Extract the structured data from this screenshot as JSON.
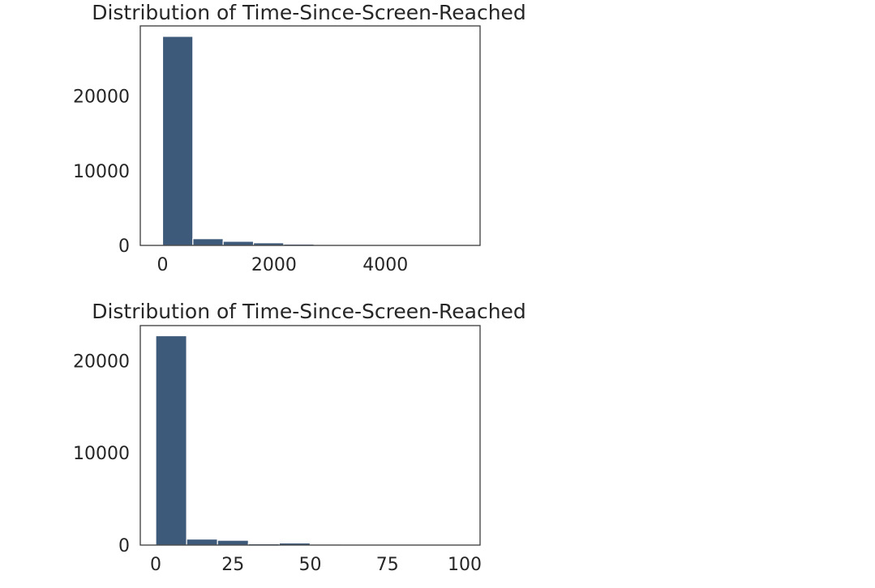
{
  "chart_data": [
    {
      "type": "bar",
      "title": "Distribution of Time-Since-Screen-Reached",
      "xlabel": "",
      "ylabel": "",
      "bin_edges": [
        0,
        544,
        1088,
        1632,
        2176,
        2720,
        3264,
        3808,
        4352,
        4896,
        5440
      ],
      "values": [
        28000,
        900,
        550,
        350,
        180,
        70,
        40,
        20,
        10,
        5
      ],
      "xlim": [
        -400,
        5700
      ],
      "ylim": [
        0,
        29400
      ],
      "xticks": [
        0,
        2000,
        4000
      ],
      "xtick_labels": [
        "0",
        "2000",
        "4000"
      ],
      "yticks": [
        0,
        10000,
        20000
      ],
      "ytick_labels": [
        "0",
        "10000",
        "20000"
      ],
      "grid": false,
      "color": "#3e5a7a"
    },
    {
      "type": "bar",
      "title": "Distribution of Time-Since-Screen-Reached",
      "xlabel": "",
      "ylabel": "",
      "bin_edges": [
        0,
        10,
        20,
        30,
        40,
        50,
        60,
        70,
        80,
        90,
        100
      ],
      "values": [
        22700,
        650,
        520,
        140,
        230,
        110,
        40,
        90,
        30,
        20
      ],
      "xlim": [
        -5,
        105
      ],
      "ylim": [
        0,
        23800
      ],
      "xticks": [
        0,
        25,
        50,
        75,
        100
      ],
      "xtick_labels": [
        "0",
        "25",
        "50",
        "75",
        "100"
      ],
      "yticks": [
        0,
        10000,
        20000
      ],
      "ytick_labels": [
        "0",
        "10000",
        "20000"
      ],
      "grid": false,
      "color": "#3e5a7a"
    }
  ]
}
